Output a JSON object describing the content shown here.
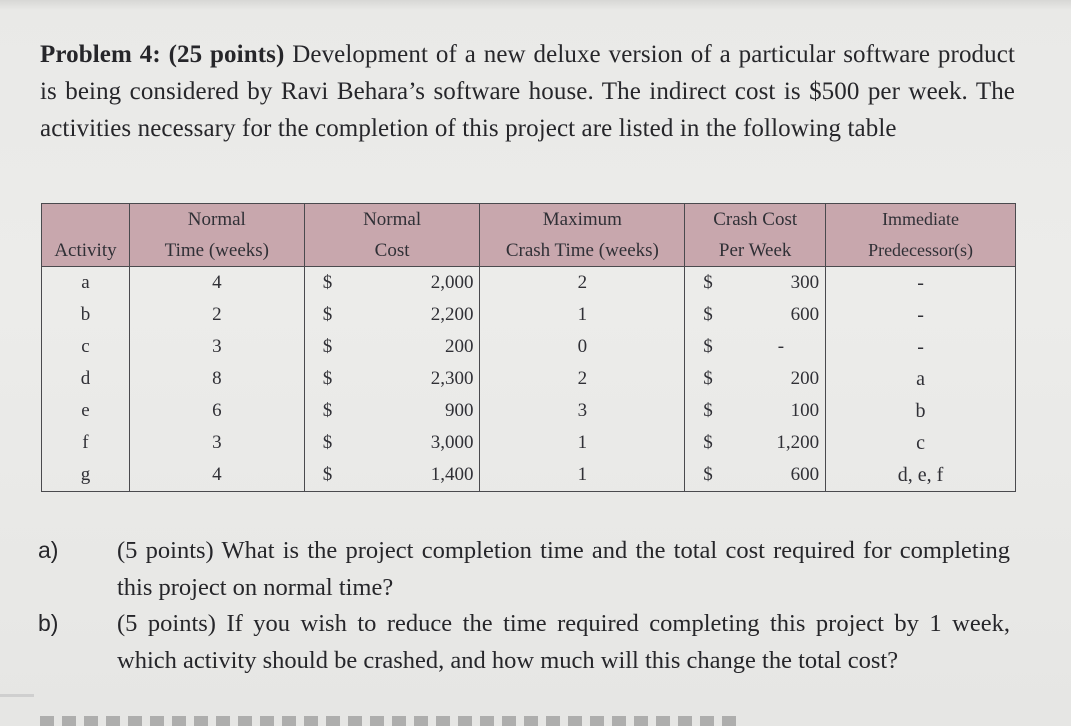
{
  "problem": {
    "heading": "Problem 4: (25 points)",
    "text": " Development of a new deluxe version of a particular software product is being considered by Ravi Behara’s software house. The indirect cost is $500 per week. The activities necessary for the completion of this project are listed in the following table"
  },
  "table": {
    "headers": {
      "activity": "Activity",
      "normal_time_1": "Normal",
      "normal_time_2": "Time (weeks)",
      "normal_cost_1": "Normal",
      "normal_cost_2": "Cost",
      "max_crash_1": "Maximum",
      "max_crash_2": "Crash Time (weeks)",
      "crash_cost_1": "Crash Cost",
      "crash_cost_2": "Per Week",
      "pred_1": "Immediate",
      "pred_2": "Predecessor(s)"
    },
    "currency": "$",
    "rows": [
      {
        "activity": "a",
        "normal_time": "4",
        "normal_cost": "2,000",
        "max_crash": "2",
        "crash_cost": "300",
        "pred": "-"
      },
      {
        "activity": "b",
        "normal_time": "2",
        "normal_cost": "2,200",
        "max_crash": "1",
        "crash_cost": "600",
        "pred": "-"
      },
      {
        "activity": "c",
        "normal_time": "3",
        "normal_cost": "200",
        "max_crash": "0",
        "crash_cost": "-",
        "pred": "-"
      },
      {
        "activity": "d",
        "normal_time": "8",
        "normal_cost": "2,300",
        "max_crash": "2",
        "crash_cost": "200",
        "pred": "a"
      },
      {
        "activity": "e",
        "normal_time": "6",
        "normal_cost": "900",
        "max_crash": "3",
        "crash_cost": "100",
        "pred": "b"
      },
      {
        "activity": "f",
        "normal_time": "3",
        "normal_cost": "3,000",
        "max_crash": "1",
        "crash_cost": "1,200",
        "pred": "c"
      },
      {
        "activity": "g",
        "normal_time": "4",
        "normal_cost": "1,400",
        "max_crash": "1",
        "crash_cost": "600",
        "pred": "d, e, f"
      }
    ]
  },
  "questions": [
    {
      "label": "a)",
      "text": "(5 points) What is the project completion time and the total cost required for completing this project on normal time?"
    },
    {
      "label": "b)",
      "text": "(5 points) If you wish to reduce the time required completing this project by 1 week, which activity should be crashed, and how much will this change the total cost?"
    }
  ]
}
